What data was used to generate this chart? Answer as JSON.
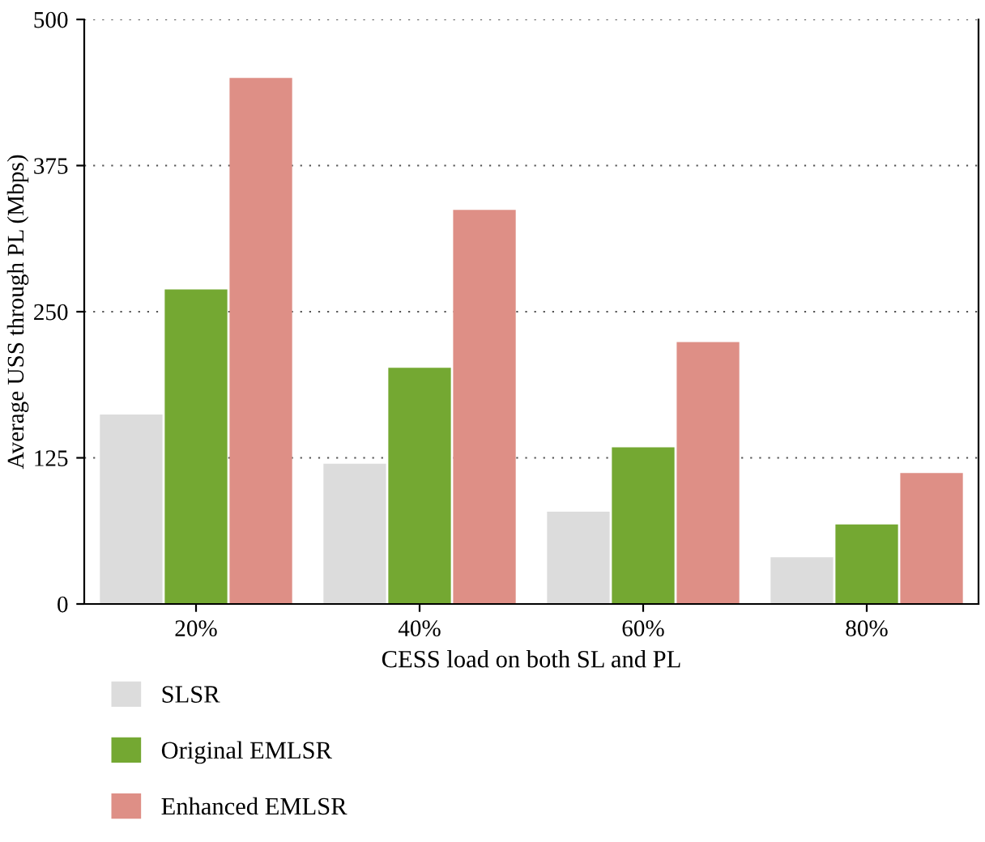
{
  "chart_data": {
    "type": "bar",
    "xlabel": "CESS load on both SL and PL",
    "ylabel": "Average USS through PL (Mbps)",
    "categories": [
      "20%",
      "40%",
      "60%",
      "80%"
    ],
    "series": [
      {
        "name": "SLSR",
        "color": "#dcdcdc",
        "values": [
          162,
          120,
          79,
          40
        ]
      },
      {
        "name": "Original EMLSR",
        "color": "#74a832",
        "values": [
          269,
          202,
          134,
          68
        ]
      },
      {
        "name": "Enhanced EMLSR",
        "color": "#de8f86",
        "values": [
          450,
          337,
          224,
          112
        ]
      }
    ],
    "ylim": [
      0,
      500
    ],
    "yticks": [
      0,
      125,
      250,
      375,
      500
    ],
    "grid": "y",
    "legend": "bottom"
  }
}
